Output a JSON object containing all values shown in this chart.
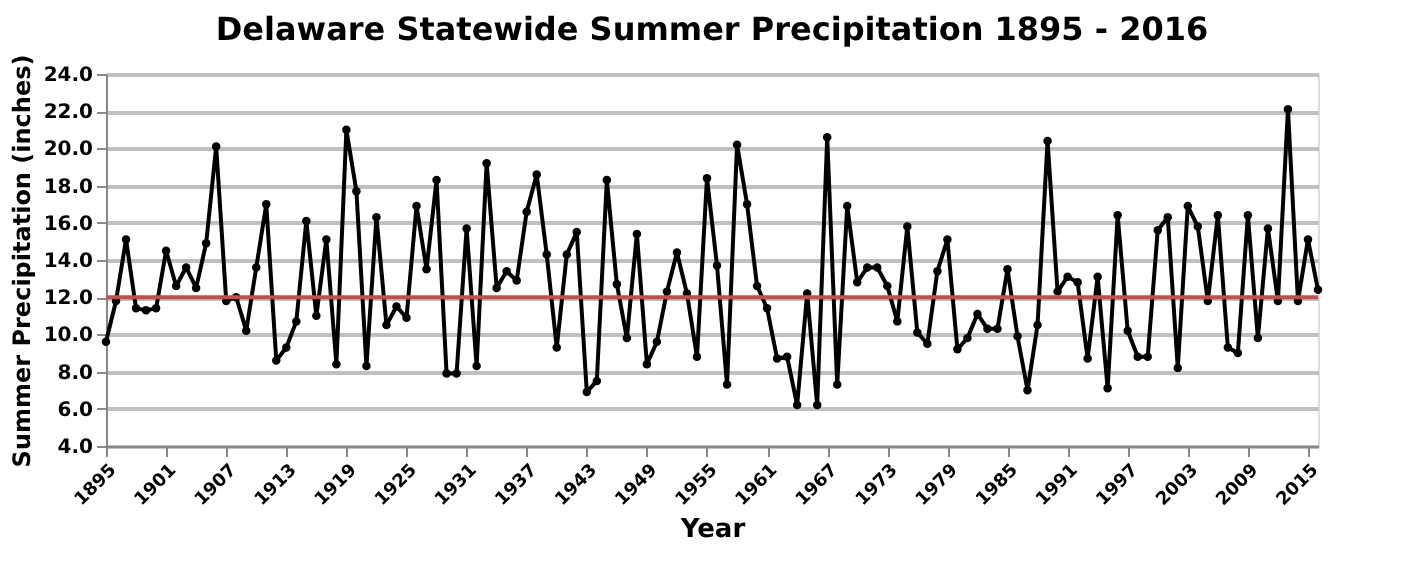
{
  "chart_data": {
    "type": "line",
    "title": "Delaware Statewide Summer Precipitation 1895 - 2016",
    "xlabel": "Year",
    "ylabel": "Summer Precipitation (inches)",
    "x": [
      1895,
      1896,
      1897,
      1898,
      1899,
      1900,
      1901,
      1902,
      1903,
      1904,
      1905,
      1906,
      1907,
      1908,
      1909,
      1910,
      1911,
      1912,
      1913,
      1914,
      1915,
      1916,
      1917,
      1918,
      1919,
      1920,
      1921,
      1922,
      1923,
      1924,
      1925,
      1926,
      1927,
      1928,
      1929,
      1930,
      1931,
      1932,
      1933,
      1934,
      1935,
      1936,
      1937,
      1938,
      1939,
      1940,
      1941,
      1942,
      1943,
      1944,
      1945,
      1946,
      1947,
      1948,
      1949,
      1950,
      1951,
      1952,
      1953,
      1954,
      1955,
      1956,
      1957,
      1958,
      1959,
      1960,
      1961,
      1962,
      1963,
      1964,
      1965,
      1966,
      1967,
      1968,
      1969,
      1970,
      1971,
      1972,
      1973,
      1974,
      1975,
      1976,
      1977,
      1978,
      1979,
      1980,
      1981,
      1982,
      1983,
      1984,
      1985,
      1986,
      1987,
      1988,
      1989,
      1990,
      1991,
      1992,
      1993,
      1994,
      1995,
      1996,
      1997,
      1998,
      1999,
      2000,
      2001,
      2002,
      2003,
      2004,
      2005,
      2006,
      2007,
      2008,
      2009,
      2010,
      2011,
      2012,
      2013,
      2014,
      2015,
      2016
    ],
    "series": [
      {
        "color": "#000000",
        "values": [
          9.6,
          11.8,
          15.1,
          11.4,
          11.3,
          11.4,
          14.5,
          12.6,
          13.6,
          12.5,
          14.9,
          20.1,
          11.8,
          12.0,
          10.2,
          13.6,
          17.0,
          8.6,
          9.3,
          10.7,
          16.1,
          11.0,
          15.1,
          8.4,
          21.0,
          17.7,
          8.3,
          16.3,
          10.5,
          11.5,
          10.9,
          16.9,
          13.5,
          18.3,
          7.9,
          7.9,
          15.7,
          8.3,
          19.2,
          12.5,
          13.4,
          12.9,
          16.6,
          18.6,
          14.3,
          9.3,
          14.3,
          15.5,
          6.9,
          7.5,
          18.3,
          12.7,
          9.8,
          15.4,
          8.4,
          9.6,
          12.3,
          14.4,
          12.2,
          8.8,
          18.4,
          13.7,
          7.3,
          20.2,
          17.0,
          12.6,
          11.4,
          8.7,
          8.8,
          6.2,
          12.2,
          6.2,
          20.6,
          7.3,
          16.9,
          12.8,
          13.6,
          13.6,
          12.6,
          10.7,
          15.8,
          10.1,
          9.5,
          13.4,
          15.1,
          9.2,
          9.8,
          11.1,
          10.3,
          10.3,
          13.5,
          9.9,
          7.0,
          10.5,
          20.4,
          12.3,
          13.1,
          12.8,
          8.7,
          13.1,
          7.1,
          16.4,
          10.2,
          8.8,
          8.8,
          15.6,
          16.3,
          8.2,
          16.9,
          15.8,
          11.8,
          16.4,
          9.3,
          9.0,
          16.4,
          9.8,
          15.7,
          11.8,
          22.1,
          11.8,
          15.1,
          12.4
        ]
      }
    ],
    "xlim": [
      1895,
      2016
    ],
    "xticks": [
      1895,
      1901,
      1907,
      1913,
      1919,
      1925,
      1931,
      1937,
      1943,
      1949,
      1955,
      1961,
      1967,
      1973,
      1979,
      1985,
      1991,
      1997,
      2003,
      2009,
      2015
    ],
    "ylim": [
      4,
      24
    ],
    "yticks": [
      {
        "value": 4,
        "label": "4.0"
      },
      {
        "value": 6,
        "label": "6.0"
      },
      {
        "value": 8,
        "label": "8.0"
      },
      {
        "value": 10,
        "label": "10.0"
      },
      {
        "value": 12,
        "label": "12.0"
      },
      {
        "value": 14,
        "label": "14.0"
      },
      {
        "value": 16,
        "label": "16.0"
      },
      {
        "value": 18,
        "label": "18.0"
      },
      {
        "value": 20,
        "label": "20.0"
      },
      {
        "value": 22,
        "label": "22.0"
      },
      {
        "value": 24,
        "label": "24.0"
      }
    ],
    "grid": "y",
    "marker": "circle",
    "line_style": "solid",
    "ref_lines": [
      {
        "axis": "y",
        "value": 12,
        "color": "#c0504d"
      }
    ]
  }
}
